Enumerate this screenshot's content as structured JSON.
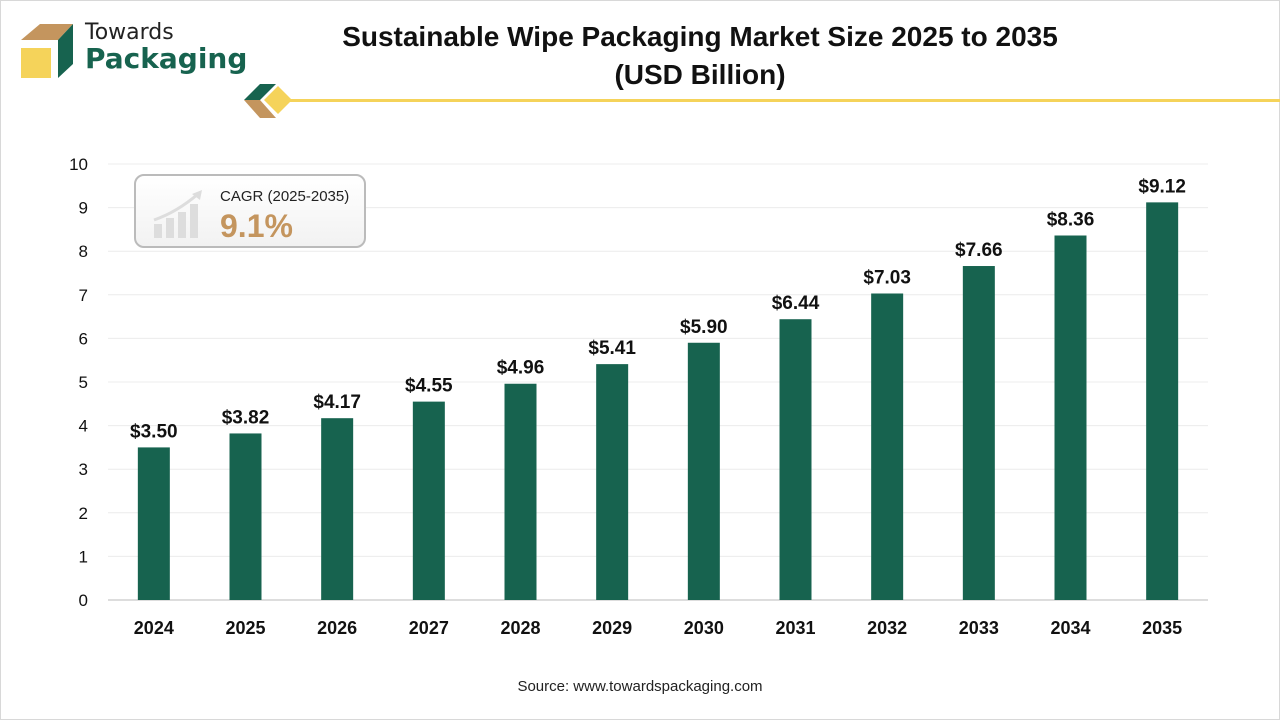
{
  "brand": {
    "line1": "Towards",
    "line2": "Packaging"
  },
  "title_line1": "Sustainable Wipe Packaging Market Size 2025 to 2035",
  "title_line2": "(USD Billion)",
  "cagr": {
    "label": "CAGR (2025-2035)",
    "value": "9.1%"
  },
  "source": "Source: www.towardspackaging.com",
  "colors": {
    "bar": "#17634f",
    "accent": "#f5d35a",
    "gold": "#c4955e"
  },
  "chart_data": {
    "type": "bar",
    "categories": [
      "2024",
      "2025",
      "2026",
      "2027",
      "2028",
      "2029",
      "2030",
      "2031",
      "2032",
      "2033",
      "2034",
      "2035"
    ],
    "values": [
      3.5,
      3.82,
      4.17,
      4.55,
      4.96,
      5.41,
      5.9,
      6.44,
      7.03,
      7.66,
      8.36,
      9.12
    ],
    "data_labels": [
      "$3.50",
      "$3.82",
      "$4.17",
      "$4.55",
      "$4.96",
      "$5.41",
      "$5.90",
      "$6.44",
      "$7.03",
      "$7.66",
      "$8.36",
      "$9.12"
    ],
    "title": "Sustainable Wipe Packaging Market Size 2025 to 2035 (USD Billion)",
    "ylim": [
      0,
      10
    ],
    "yticks": [
      "0",
      "1",
      "2",
      "3",
      "4",
      "5",
      "6",
      "7",
      "8",
      "9",
      "10"
    ],
    "grid": true
  }
}
